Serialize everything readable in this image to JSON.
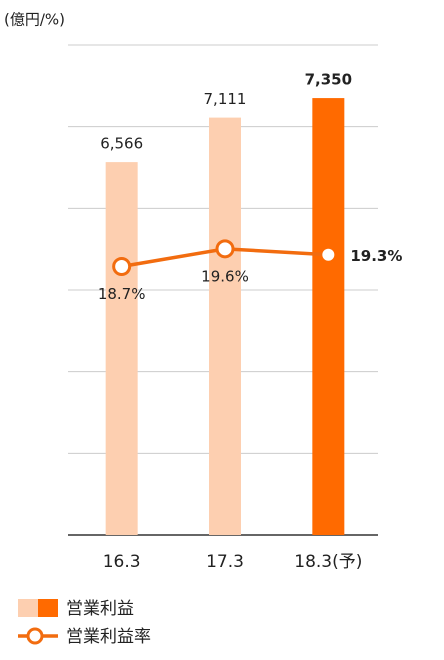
{
  "chart_data": {
    "type": "bar-line",
    "unit_label": "(億円/%)",
    "categories": [
      "16.3",
      "17.3",
      "18.3(予)"
    ],
    "series": [
      {
        "name": "営業利益",
        "type": "bar",
        "colors": [
          "#fdcfb0",
          "#fdcfb0",
          "#ff6a00"
        ],
        "values": [
          6566,
          7111,
          7350
        ],
        "value_labels": [
          "6,566",
          "7,111",
          "7,350"
        ]
      },
      {
        "name": "営業利益率",
        "type": "line",
        "axis": "y2",
        "color": "#f26c0f",
        "values": [
          18.7,
          19.6,
          19.3
        ],
        "value_labels": [
          "18.7%",
          "19.6%",
          "19.3%"
        ]
      }
    ],
    "ylim": [
      2000,
      8000
    ],
    "yticks": [
      3000,
      4000,
      5000,
      6000,
      7000,
      8000
    ],
    "y2lim": [
      5,
      30
    ],
    "grid": true
  }
}
